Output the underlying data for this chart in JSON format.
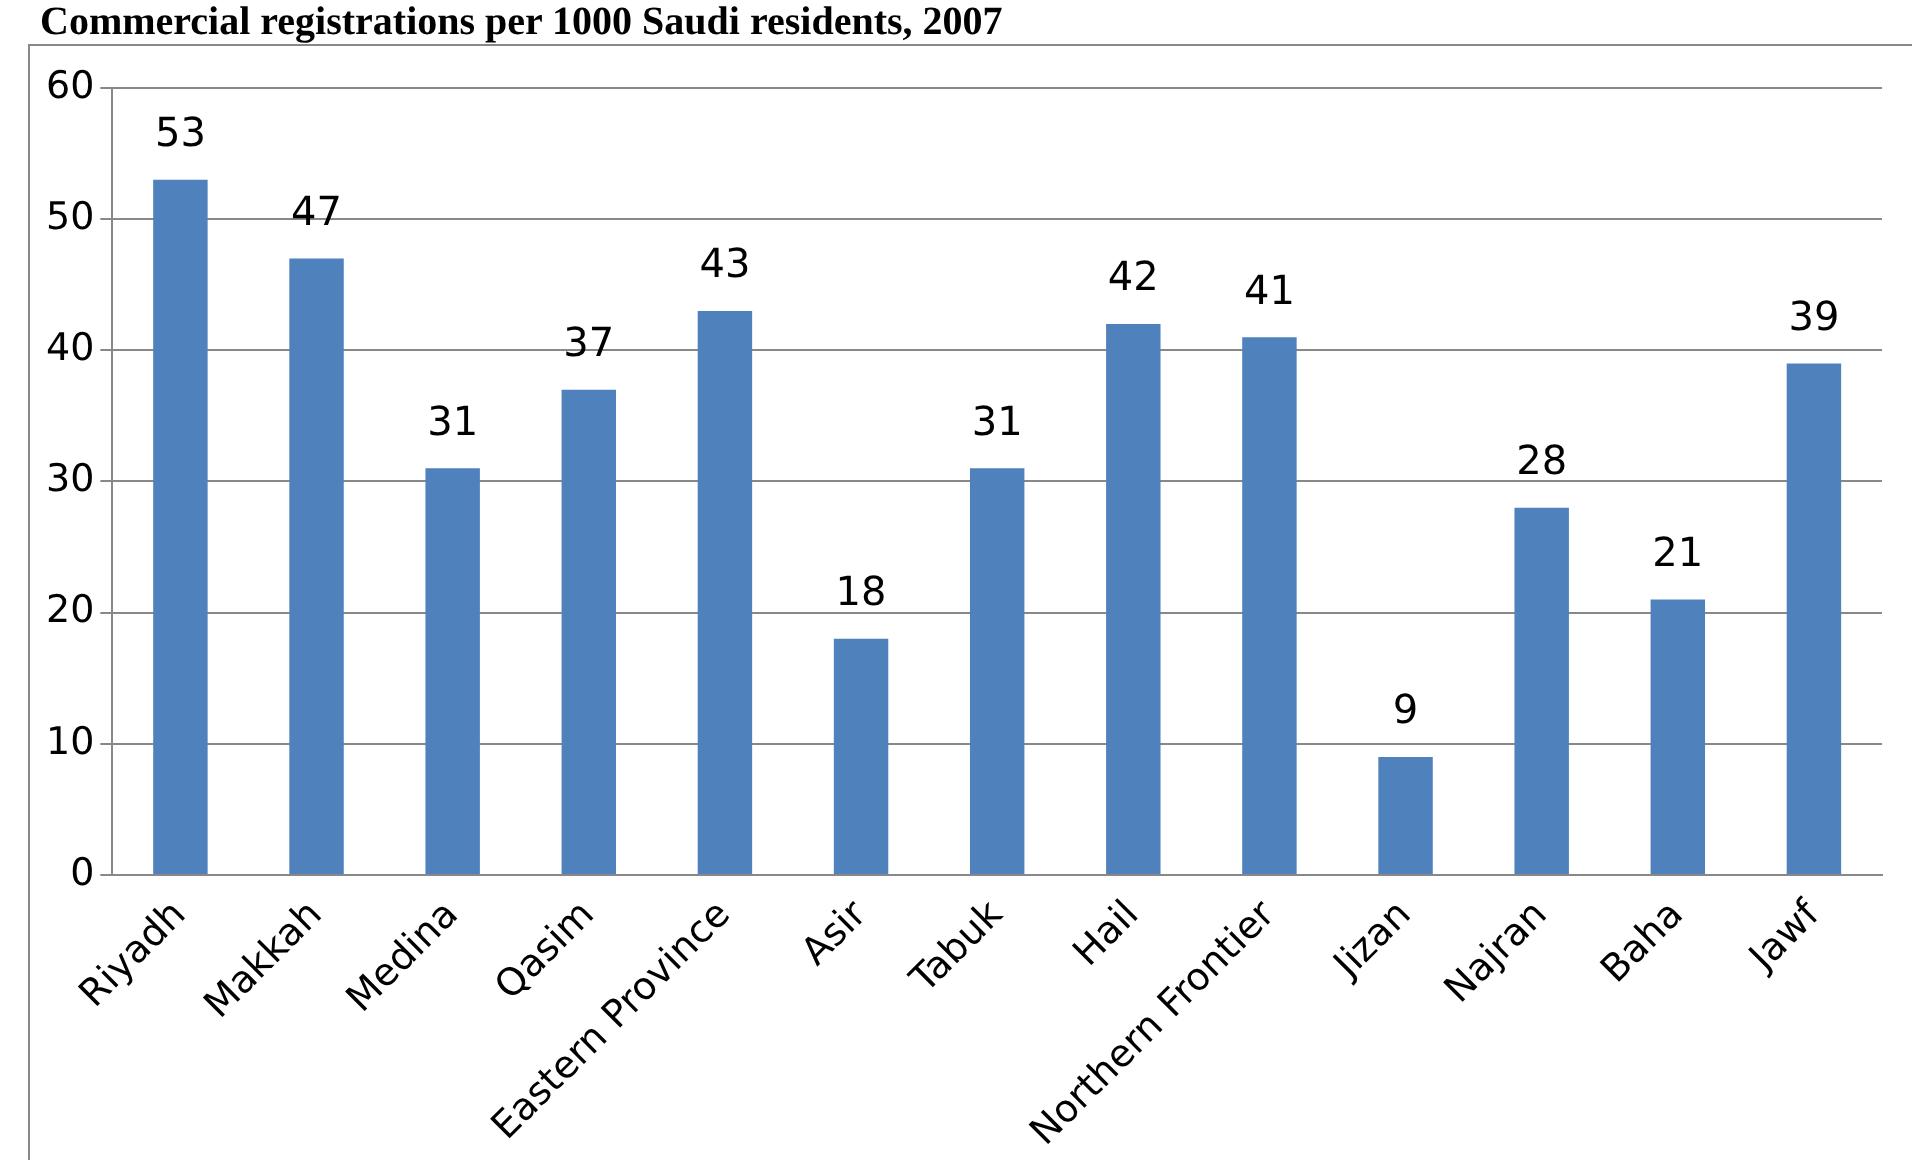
{
  "chart_data": {
    "type": "bar",
    "title": "Commercial registrations per 1000 Saudi residents, 2007",
    "categories": [
      "Riyadh",
      "Makkah",
      "Medina",
      "Qasim",
      "Eastern Province",
      "Asir",
      "Tabuk",
      "Hail",
      "Northern Frontier",
      "Jizan",
      "Najran",
      "Baha",
      "Jawf"
    ],
    "values": [
      53,
      47,
      31,
      37,
      43,
      18,
      31,
      42,
      41,
      9,
      28,
      21,
      39
    ],
    "color": "#4f81bd",
    "ylim": [
      0,
      60
    ],
    "yticks": [
      0,
      10,
      20,
      30,
      40,
      50,
      60
    ],
    "grid": "y",
    "data_labels": true
  }
}
